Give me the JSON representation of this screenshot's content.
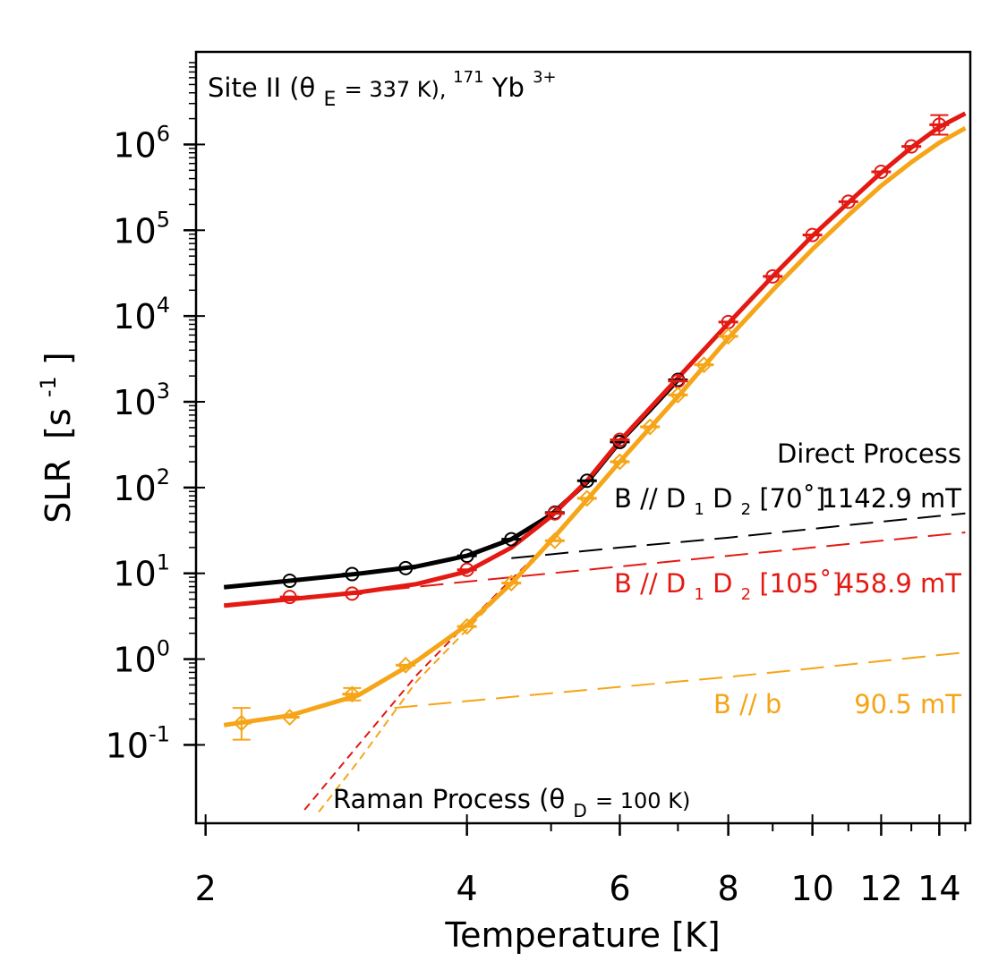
{
  "chart_data": {
    "type": "scatter",
    "xlabel": "Temperature [K]",
    "ylabel": "SLR",
    "ylabel_unit_base": "[s",
    "ylabel_unit_exp": "-1",
    "ylabel_unit_close": "]",
    "xscale": "log",
    "yscale": "log",
    "xlim": [
      1.95,
      15.2
    ],
    "ylim": [
      0.0122,
      12000000
    ],
    "x_ticks": [
      {
        "value": 2,
        "label": "2"
      },
      {
        "value": 4,
        "label": "4"
      },
      {
        "value": 6,
        "label": "6"
      },
      {
        "value": 8,
        "label": "8"
      },
      {
        "value": 10,
        "label": "10"
      },
      {
        "value": 12,
        "label": "12"
      },
      {
        "value": 14,
        "label": "14"
      }
    ],
    "x_minor_ticks": [
      3,
      5,
      7,
      9,
      11,
      13,
      15
    ],
    "y_ticks": [
      {
        "value": 0.1,
        "base": "10",
        "exp": "-1"
      },
      {
        "value": 1,
        "base": "10",
        "exp": "0"
      },
      {
        "value": 10,
        "base": "10",
        "exp": "1"
      },
      {
        "value": 100,
        "base": "10",
        "exp": "2"
      },
      {
        "value": 1000,
        "base": "10",
        "exp": "3"
      },
      {
        "value": 10000,
        "base": "10",
        "exp": "4"
      },
      {
        "value": 100000,
        "base": "10",
        "exp": "5"
      },
      {
        "value": 1000000,
        "base": "10",
        "exp": "6"
      }
    ],
    "grid": false,
    "annotations": {
      "site": {
        "pre": "Site II (θ",
        "sub": "E",
        "mid": " = 337 K), ",
        "sup": "171",
        "post": "Yb",
        "sup2": "3+"
      },
      "direct_process": "Direct Process",
      "raman": {
        "pre": "Raman Process (θ",
        "sub": "D",
        "post": " = 100 K)"
      },
      "field_70": {
        "pre": "B // D",
        "sub1": "1",
        "mid": "D",
        "sub2": "2",
        "post": "[70˚]",
        "value": "1142.9 mT"
      },
      "field_105": {
        "pre": "B // D",
        "sub1": "1",
        "mid": "D",
        "sub2": "2",
        "post": "[105˚]",
        "value": "458.9 mT"
      },
      "field_b": {
        "label": "B // b",
        "value": "90.5 mT"
      }
    },
    "series": [
      {
        "color": "#000000",
        "marker": "circle-open",
        "points": [
          [
            2.5,
            8.2
          ],
          [
            2.95,
            9.8
          ],
          [
            3.4,
            11.5
          ],
          [
            4.0,
            16
          ],
          [
            4.5,
            25
          ],
          [
            5.05,
            51
          ],
          [
            5.5,
            120
          ],
          [
            6.0,
            340
          ],
          [
            7.0,
            1800
          ]
        ],
        "fit": [
          [
            2.1,
            6.9
          ],
          [
            2.5,
            8.2
          ],
          [
            3.0,
            9.9
          ],
          [
            3.5,
            12
          ],
          [
            4.0,
            16
          ],
          [
            4.5,
            25
          ],
          [
            5.0,
            48
          ],
          [
            5.5,
            115
          ],
          [
            6.0,
            340
          ],
          [
            6.5,
            800
          ],
          [
            7.0,
            1800
          ]
        ],
        "direct": [
          [
            4.5,
            15
          ],
          [
            6,
            20
          ],
          [
            8,
            26
          ],
          [
            10,
            33
          ],
          [
            12,
            40
          ],
          [
            15,
            50
          ]
        ]
      },
      {
        "color": "#e31a13",
        "marker": "circle-open",
        "points": [
          [
            2.5,
            5.3
          ],
          [
            2.95,
            5.8
          ],
          [
            4.0,
            11
          ],
          [
            5.05,
            50
          ],
          [
            6.0,
            360
          ],
          [
            7.0,
            1750
          ],
          [
            8.0,
            8500
          ],
          [
            9.0,
            29000
          ],
          [
            10.0,
            88000
          ],
          [
            11.0,
            215000
          ],
          [
            12.0,
            480000
          ],
          [
            13.0,
            950000
          ],
          [
            14.0,
            1700000
          ]
        ],
        "fit": [
          [
            2.1,
            4.2
          ],
          [
            2.5,
            5.0
          ],
          [
            3.0,
            6.0
          ],
          [
            3.5,
            7.5
          ],
          [
            4.0,
            10.5
          ],
          [
            4.5,
            20
          ],
          [
            5.0,
            46
          ],
          [
            5.5,
            120
          ],
          [
            6.0,
            350
          ],
          [
            7.0,
            1900
          ],
          [
            8.0,
            8200
          ],
          [
            9.0,
            29000
          ],
          [
            10.0,
            86000
          ],
          [
            11.0,
            210000
          ],
          [
            12.0,
            470000
          ],
          [
            13.0,
            920000
          ],
          [
            14.0,
            1600000
          ],
          [
            15.0,
            2300000
          ]
        ],
        "direct": [
          [
            2.7,
            5.3
          ],
          [
            4,
            8
          ],
          [
            6,
            12
          ],
          [
            8,
            16
          ],
          [
            10,
            20
          ],
          [
            12,
            24
          ],
          [
            15,
            30
          ]
        ],
        "raman": [
          [
            2.6,
            0.0175
          ],
          [
            3,
            0.1
          ],
          [
            3.5,
            0.65
          ],
          [
            4,
            2.6
          ],
          [
            4.5,
            8.5
          ],
          [
            5,
            24
          ],
          [
            5.5,
            75
          ],
          [
            6,
            200
          ]
        ]
      },
      {
        "color": "#f5a517",
        "marker": "diamond-open",
        "points": [
          [
            2.2,
            0.18
          ],
          [
            2.5,
            0.21
          ],
          [
            2.95,
            0.39
          ],
          [
            3.4,
            0.85
          ],
          [
            4.0,
            2.4
          ],
          [
            4.5,
            7.7
          ],
          [
            5.05,
            24
          ],
          [
            5.5,
            75
          ],
          [
            6.0,
            200
          ],
          [
            6.5,
            510
          ],
          [
            7.0,
            1200
          ],
          [
            7.5,
            2700
          ],
          [
            8.0,
            5800
          ]
        ],
        "fit": [
          [
            2.1,
            0.17
          ],
          [
            2.5,
            0.22
          ],
          [
            3.0,
            0.38
          ],
          [
            3.5,
            0.95
          ],
          [
            4.0,
            2.5
          ],
          [
            4.5,
            7.6
          ],
          [
            5.0,
            24
          ],
          [
            5.5,
            72
          ],
          [
            6.0,
            200
          ],
          [
            7.0,
            1150
          ],
          [
            8.0,
            5500
          ],
          [
            9.0,
            20000
          ],
          [
            10.0,
            60000
          ],
          [
            11.0,
            150000
          ],
          [
            12.0,
            330000
          ],
          [
            13.0,
            620000
          ],
          [
            14.0,
            1050000
          ],
          [
            15.0,
            1550000
          ]
        ],
        "direct": [
          [
            3.3,
            0.27
          ],
          [
            5,
            0.4
          ],
          [
            8,
            0.62
          ],
          [
            10,
            0.78
          ],
          [
            12,
            0.95
          ],
          [
            15,
            1.2
          ]
        ],
        "raman": [
          [
            2.7,
            0.0165
          ],
          [
            3,
            0.065
          ],
          [
            3.5,
            0.55
          ],
          [
            4,
            2.2
          ],
          [
            4.5,
            7.6
          ],
          [
            5,
            24
          ]
        ]
      }
    ]
  }
}
